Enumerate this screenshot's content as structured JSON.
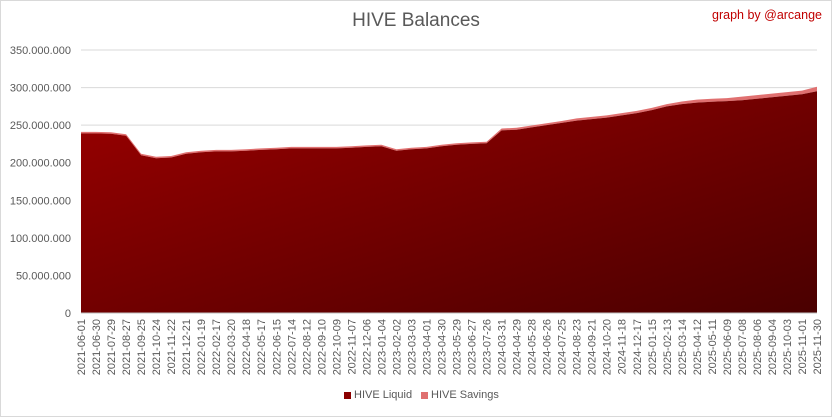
{
  "chart_data": {
    "type": "area",
    "stacked": true,
    "title": "HIVE Balances",
    "credit": "graph by @arcange",
    "xlabel": "",
    "ylabel": "",
    "ylim": [
      0,
      350000000
    ],
    "y_ticks": [
      0,
      50000000,
      100000000,
      150000000,
      200000000,
      250000000,
      300000000,
      350000000
    ],
    "y_tick_labels": [
      "0",
      "50.000.000",
      "100.000.000",
      "150.000.000",
      "200.000.000",
      "250.000.000",
      "300.000.000",
      "350.000.000"
    ],
    "grid": "horizontal",
    "legend_position": "bottom",
    "x_tick_labels": [
      "2021-06-01",
      "2021-06-30",
      "2021-07-29",
      "2021-08-27",
      "2021-09-25",
      "2021-10-24",
      "2021-11-22",
      "2021-12-21",
      "2022-01-19",
      "2022-02-17",
      "2022-03-20",
      "2022-04-18",
      "2022-05-17",
      "2022-06-15",
      "2022-07-14",
      "2022-08-12",
      "2022-09-10",
      "2022-10-09",
      "2022-11-07",
      "2022-12-06",
      "2023-01-04",
      "2023-02-02",
      "2023-03-03",
      "2023-04-01",
      "2023-04-30",
      "2023-05-29",
      "2023-06-27",
      "2023-07-26",
      "2024-03-31",
      "2024-04-29",
      "2024-05-28",
      "2024-06-26",
      "2024-07-25",
      "2024-08-23",
      "2024-09-21",
      "2024-10-20",
      "2024-11-18",
      "2024-12-17",
      "2025-01-15",
      "2025-02-13",
      "2025-03-14",
      "2025-04-12",
      "2025-05-11",
      "2025-06-09",
      "2025-07-08",
      "2025-08-06",
      "2025-09-04",
      "2025-10-03",
      "2025-11-01",
      "2025-11-30"
    ],
    "series": [
      {
        "name": "HIVE Liquid",
        "color": "#8b0000",
        "values": [
          239000000,
          239000000,
          238500000,
          236000000,
          210000000,
          206000000,
          207000000,
          212000000,
          214000000,
          215000000,
          215000000,
          216000000,
          217000000,
          218000000,
          219000000,
          219000000,
          219000000,
          219000000,
          220000000,
          221000000,
          222000000,
          216000000,
          218000000,
          219000000,
          222000000,
          224000000,
          225000000,
          226000000,
          243000000,
          244000000,
          247000000,
          250000000,
          253000000,
          256000000,
          258000000,
          260000000,
          263000000,
          266000000,
          270000000,
          275000000,
          278000000,
          280000000,
          281000000,
          282000000,
          283000000,
          285000000,
          287000000,
          289000000,
          291000000,
          295000000
        ]
      },
      {
        "name": "HIVE Savings",
        "color": "#e07070",
        "values": [
          2000000,
          2000000,
          2000000,
          2000000,
          2000000,
          2000000,
          2000000,
          2000000,
          2000000,
          2000000,
          2000000,
          2000000,
          2000000,
          2000000,
          2000000,
          2000000,
          2000000,
          2000000,
          2000000,
          2000000,
          2000000,
          2000000,
          2000000,
          2000000,
          2000000,
          2000000,
          2000000,
          2000000,
          2500000,
          2500000,
          2500000,
          2500000,
          2500000,
          3000000,
          3000000,
          3000000,
          3000000,
          3000000,
          3000000,
          3000000,
          3500000,
          4000000,
          4000000,
          4000000,
          5000000,
          5000000,
          5000000,
          5000000,
          5000000,
          6000000
        ]
      }
    ]
  }
}
